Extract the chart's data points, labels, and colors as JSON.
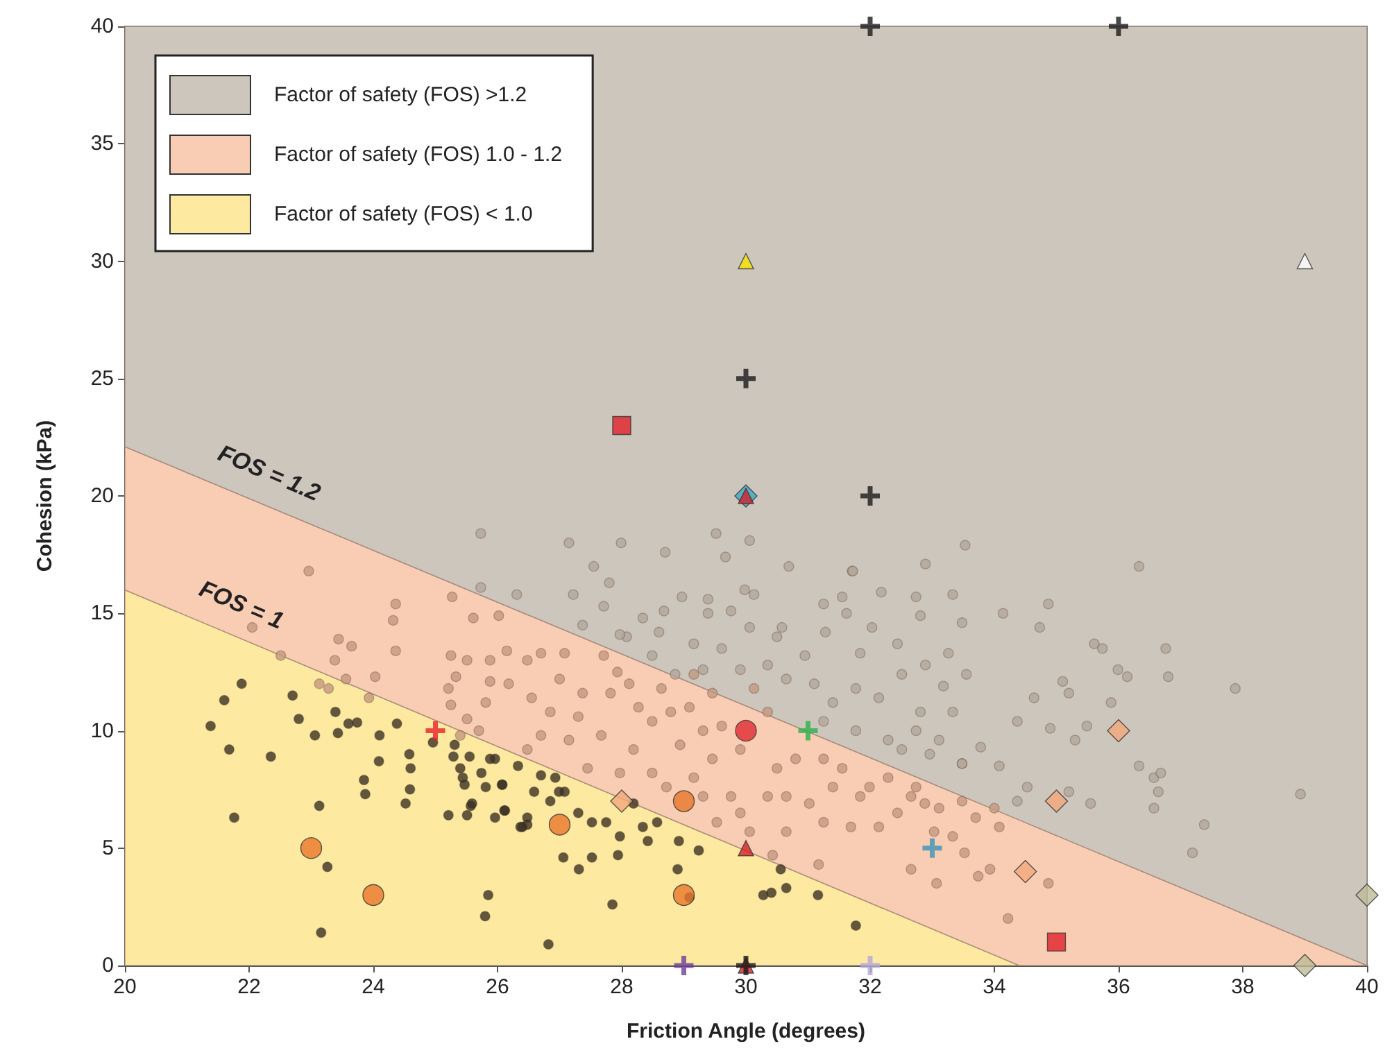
{
  "chart_data": {
    "type": "scatter",
    "xlabel": "Friction Angle (degrees)",
    "ylabel": "Cohesion (kPa)",
    "xlim": [
      20,
      40
    ],
    "ylim": [
      0,
      40
    ],
    "xticks": [
      20,
      22,
      24,
      26,
      28,
      30,
      32,
      34,
      36,
      38,
      40
    ],
    "yticks": [
      0,
      5,
      10,
      15,
      20,
      25,
      30,
      35,
      40
    ],
    "grid": false,
    "legend": "top left",
    "annotations": [
      "FOS = 1.2",
      "FOS = 1"
    ],
    "stacked": true,
    "series": [
      {
        "type": "area",
        "name": "Factor of safety (FOS) < 1.0",
        "color": "#fde9a0",
        "x": [
          20,
          34.4,
          40
        ],
        "values": [
          16,
          0,
          0
        ]
      },
      {
        "type": "area",
        "name": "Factor of safety (FOS) 1.0 - 1.2",
        "color": "#f8cdb3",
        "x": [
          20,
          34.4,
          40
        ],
        "values": [
          6.1,
          6.2,
          0
        ]
      },
      {
        "type": "area",
        "name": "Factor of safety (FOS) >1.2",
        "color": "#cdc6bd",
        "x": [
          20,
          34.4,
          40
        ],
        "values": [
          17.9,
          33.8,
          40
        ]
      },
      {
        "marker": "circle",
        "color": "#b3a69a",
        "x": [
          25.73,
          27.15,
          27.99,
          28.7,
          29.52,
          30.06,
          29.67,
          30.69,
          31.71,
          32.89,
          33.53,
          27.55,
          27.8,
          25.73,
          26.31,
          27.22,
          28.97,
          29.39,
          29.98,
          30.13,
          31.55,
          32.18,
          32.74,
          33.33,
          31.25,
          27.71,
          28.34,
          28.68,
          29.39,
          29.76,
          30.58,
          31.62,
          32.03,
          32.81,
          33.48,
          28.08,
          28.6,
          29.16,
          29.61,
          30.06,
          30.5,
          30.95,
          31.28,
          31.84,
          32.44,
          32.89,
          33.26,
          29.31,
          29.91,
          30.35,
          30.65,
          31.1,
          31.4,
          31.77,
          32.14,
          32.51,
          32.81,
          33.18,
          33.55,
          31.25,
          31.77,
          32.29,
          32.74,
          33.33,
          33.48,
          32.96,
          32.51,
          28.86,
          28.49,
          27.97,
          27.37,
          36.33,
          31.72,
          34.87,
          34.14,
          34.73,
          35.61,
          35.74,
          36.76,
          35.99,
          36.14,
          36.8,
          37.88,
          35.88,
          35.1,
          35.2,
          34.64,
          34.37,
          35.49,
          35.3,
          34.9,
          36.33,
          36.57,
          36.68,
          36.64,
          36.57,
          35.55,
          35.2,
          34.53,
          34.37,
          38.93,
          37.38,
          37.19,
          33.78,
          34.08,
          33.48,
          33.11
        ],
        "values": [
          18.4,
          18.0,
          18.0,
          17.6,
          18.4,
          18.1,
          17.4,
          17.0,
          16.8,
          17.1,
          17.9,
          17.0,
          16.3,
          16.1,
          15.8,
          15.8,
          15.7,
          15.6,
          16.0,
          15.8,
          15.7,
          15.9,
          15.7,
          15.8,
          15.4,
          15.3,
          14.8,
          15.1,
          15.0,
          15.1,
          14.4,
          15.0,
          14.4,
          14.9,
          14.6,
          14.0,
          14.2,
          13.7,
          13.5,
          14.4,
          14.0,
          13.2,
          14.2,
          13.3,
          13.7,
          12.8,
          13.3,
          12.6,
          12.6,
          12.8,
          12.2,
          12.0,
          11.2,
          11.8,
          11.4,
          12.4,
          10.8,
          11.9,
          12.4,
          10.4,
          10.0,
          9.6,
          10.0,
          10.8,
          8.6,
          9.0,
          9.2,
          12.4,
          13.2,
          14.1,
          14.5,
          17.0,
          16.8,
          15.4,
          15.0,
          14.4,
          13.7,
          13.5,
          13.5,
          12.6,
          12.3,
          12.3,
          11.8,
          11.2,
          12.1,
          11.6,
          11.4,
          10.4,
          10.2,
          9.6,
          10.1,
          8.5,
          8.0,
          8.2,
          7.4,
          6.7,
          6.9,
          7.4,
          7.6,
          7.0,
          7.3,
          6.0,
          4.8,
          9.3,
          8.5,
          8.6,
          9.6
        ]
      },
      {
        "marker": "circle",
        "color": "#c4977f",
        "x": [
          25.27,
          25.61,
          26.02,
          25.25,
          25.51,
          25.88,
          26.15,
          25.33,
          25.88,
          25.21,
          25.25,
          25.81,
          26.18,
          26.48,
          26.7,
          27.08,
          27.0,
          26.55,
          26.85,
          27.3,
          27.37,
          27.71,
          27.93,
          27.82,
          28.12,
          28.27,
          28.64,
          28.49,
          28.79,
          29.09,
          29.31,
          28.94,
          28.19,
          27.67,
          27.15,
          26.7,
          26.48,
          27.45,
          27.97,
          28.49,
          28.72,
          29.16,
          29.46,
          29.61,
          29.91,
          29.31,
          29.76,
          29.91,
          29.53,
          30.06,
          30.43,
          30.35,
          30.5,
          30.8,
          30.65,
          31.02,
          30.65,
          31.25,
          31.69,
          31.84,
          31.4,
          31.25,
          31.55,
          30.35,
          30.13,
          29.46,
          29.16,
          31.99,
          32.29,
          32.66,
          32.14,
          32.44,
          32.88,
          33.03,
          32.66,
          33.07,
          31.17,
          33.74,
          33.93,
          34.87,
          34.22,
          34.08,
          33.52,
          33.33,
          33.11,
          33.7,
          34.0,
          33.48,
          32.74,
          22.96,
          24.36,
          24.32,
          23.44,
          23.65,
          23.38,
          24.36,
          23.56,
          24.03,
          22.51,
          22.05,
          25.51,
          25.7,
          25.4,
          23.13,
          23.28,
          23.93
        ],
        "values": [
          15.7,
          14.8,
          14.9,
          13.2,
          13.0,
          13.0,
          13.4,
          12.3,
          12.1,
          11.8,
          11.1,
          11.2,
          12.0,
          13.0,
          13.3,
          13.3,
          12.2,
          11.4,
          10.8,
          10.6,
          11.6,
          13.2,
          12.5,
          11.6,
          12.0,
          11.0,
          11.8,
          10.4,
          10.8,
          11.0,
          10.0,
          9.4,
          9.2,
          9.8,
          9.6,
          9.8,
          9.2,
          8.4,
          8.2,
          8.2,
          7.6,
          8.0,
          8.8,
          10.2,
          9.2,
          7.2,
          7.2,
          6.5,
          6.1,
          5.7,
          4.7,
          7.2,
          8.4,
          8.8,
          7.2,
          6.9,
          5.7,
          6.1,
          5.9,
          7.2,
          7.6,
          8.8,
          8.4,
          10.8,
          11.8,
          11.6,
          12.4,
          7.6,
          8.0,
          7.2,
          5.9,
          6.5,
          6.9,
          5.7,
          4.1,
          3.5,
          4.3,
          3.8,
          4.1,
          3.5,
          2.0,
          5.9,
          4.8,
          5.5,
          6.7,
          6.3,
          6.7,
          7.0,
          7.6,
          16.8,
          15.4,
          14.7,
          13.9,
          13.6,
          13.0,
          13.4,
          12.2,
          12.3,
          13.2,
          14.4,
          10.5,
          10.0,
          9.8,
          12.0,
          11.8,
          11.4
        ]
      },
      {
        "marker": "circle",
        "color": "#3b3224",
        "x": [
          21.88,
          21.6,
          21.38,
          21.68,
          22.35,
          21.76,
          22.7,
          22.8,
          23.06,
          23.39,
          23.43,
          23.6,
          23.74,
          24.1,
          24.38,
          24.09,
          23.85,
          23.87,
          23.13,
          23.26,
          23.16,
          24.58,
          24.6,
          24.59,
          24.52,
          24.96,
          25.31,
          25.29,
          25.55,
          25.4,
          25.47,
          25.81,
          25.96,
          25.74,
          26.08,
          26.33,
          26.59,
          26.85,
          27.08,
          25.21,
          25.51,
          25.57,
          25.96,
          26.12,
          26.4,
          27.06,
          27.31,
          25.85,
          25.8,
          26.82,
          25.88,
          25.44,
          26.99,
          27.3,
          27.52,
          27.75,
          27.97,
          28.34,
          28.42,
          28.57,
          28.92,
          29.24,
          28.9,
          29.09,
          27.52,
          27.94,
          27.85,
          30.28,
          30.41,
          30.65,
          31.16,
          30.56,
          31.77,
          26.48,
          26.11,
          26.48,
          26.7,
          26.93,
          25.59,
          26.07,
          28.19,
          26.37
        ],
        "values": [
          12.0,
          11.3,
          10.2,
          9.2,
          8.9,
          6.3,
          11.5,
          10.5,
          9.8,
          10.8,
          9.9,
          10.3,
          10.35,
          9.8,
          10.3,
          8.7,
          7.9,
          7.3,
          6.8,
          4.2,
          1.4,
          9.0,
          8.4,
          7.5,
          6.9,
          9.5,
          9.4,
          8.9,
          8.9,
          8.4,
          7.7,
          7.6,
          8.8,
          8.2,
          7.7,
          8.5,
          7.4,
          7.0,
          7.4,
          6.4,
          6.4,
          6.8,
          6.3,
          6.6,
          5.9,
          4.6,
          4.1,
          3.0,
          2.1,
          0.9,
          8.8,
          8.0,
          7.4,
          6.5,
          6.1,
          6.1,
          5.5,
          5.9,
          5.3,
          6.1,
          5.3,
          4.9,
          4.1,
          2.9,
          4.6,
          4.7,
          2.6,
          3.0,
          3.1,
          3.3,
          3.0,
          4.1,
          1.7,
          6.3,
          6.6,
          6.0,
          8.1,
          8.0,
          6.9,
          7.7,
          6.9,
          5.9
        ]
      },
      {
        "marker": "circle",
        "color": "#e8772a",
        "x": [
          23,
          24,
          27,
          29,
          29
        ],
        "values": [
          5,
          3,
          6,
          7,
          3
        ]
      },
      {
        "marker": "diamond",
        "color": "#f2a77a",
        "x": [
          28,
          34.5,
          35,
          36
        ],
        "values": [
          7,
          4,
          7,
          10
        ]
      },
      {
        "marker": "diamond",
        "color": "#bdbb96",
        "x": [
          39,
          40
        ],
        "values": [
          0,
          3
        ]
      },
      {
        "marker": "diamond",
        "color": "#3fa7c9",
        "x": [
          30
        ],
        "values": [
          20
        ]
      },
      {
        "marker": "circle",
        "color": "#e02a30",
        "x": [
          30
        ],
        "values": [
          10
        ]
      },
      {
        "marker": "triangle",
        "color": "#d42028",
        "x": [
          30,
          30,
          30
        ],
        "values": [
          20,
          5,
          0
        ]
      },
      {
        "marker": "triangle",
        "color": "#f5e400",
        "x": [
          30
        ],
        "values": [
          30
        ]
      },
      {
        "marker": "triangle",
        "color": "#ffffff",
        "x": [
          39
        ],
        "values": [
          30
        ]
      },
      {
        "marker": "square",
        "color": "#e0202a",
        "x": [
          28,
          35
        ],
        "values": [
          23,
          1
        ]
      },
      {
        "marker": "cross",
        "color": "#1a1a1a",
        "x": [
          32,
          36,
          30,
          32,
          30
        ],
        "values": [
          40,
          40,
          25,
          20,
          0
        ]
      },
      {
        "marker": "cross",
        "color": "#e8202a",
        "x": [
          25
        ],
        "values": [
          10
        ]
      },
      {
        "marker": "cross",
        "color": "#2db04b",
        "x": [
          31
        ],
        "values": [
          10
        ]
      },
      {
        "marker": "cross",
        "color": "#3a93b8",
        "x": [
          33
        ],
        "values": [
          5
        ]
      },
      {
        "marker": "cross",
        "color": "#6a3d9a",
        "x": [
          29
        ],
        "values": [
          0
        ]
      },
      {
        "marker": "cross",
        "color": "#b3a7d6",
        "x": [
          32
        ],
        "values": [
          0
        ]
      }
    ]
  }
}
